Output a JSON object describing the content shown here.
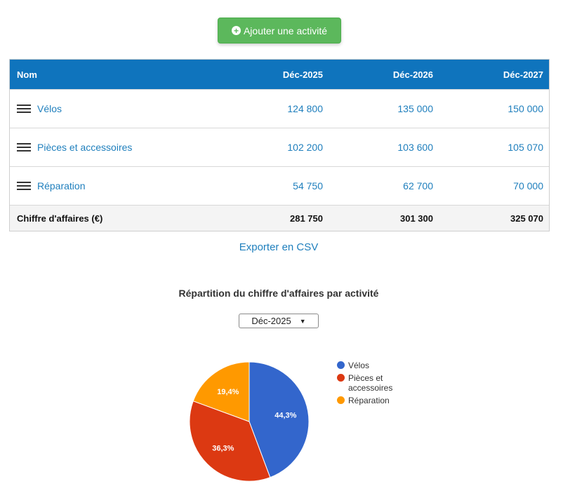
{
  "add_button": {
    "label": "Ajouter une activité",
    "icon": "plus-circle-icon"
  },
  "table": {
    "headers": [
      "Nom",
      "Déc-2025",
      "Déc-2026",
      "Déc-2027"
    ],
    "rows": [
      {
        "name": "Vélos",
        "values": [
          "124 800",
          "135 000",
          "150 000"
        ]
      },
      {
        "name": "Pièces et accessoires",
        "values": [
          "102 200",
          "103 600",
          "105 070"
        ]
      },
      {
        "name": "Réparation",
        "values": [
          "54 750",
          "62 700",
          "70 000"
        ]
      }
    ],
    "total": {
      "label": "Chiffre d'affaires (€)",
      "values": [
        "281 750",
        "301 300",
        "325 070"
      ]
    }
  },
  "export_link": "Exporter en CSV",
  "chart_title": "Répartition du chiffre d'affaires par activité",
  "period_select": {
    "value": "Déc-2025"
  },
  "colors": {
    "primary": "#0f74bd",
    "button": "#5cb85c",
    "link": "#1f7fbd"
  },
  "chart_data": {
    "type": "pie",
    "labels": [
      "Vélos",
      "Pièces et accessoires",
      "Réparation"
    ],
    "values": [
      44.3,
      36.3,
      19.4
    ],
    "value_labels": [
      "44,3%",
      "36,3%",
      "19,4%"
    ],
    "colors": [
      "#3366cc",
      "#dc3912",
      "#ff9900"
    ],
    "legend_position": "right"
  }
}
